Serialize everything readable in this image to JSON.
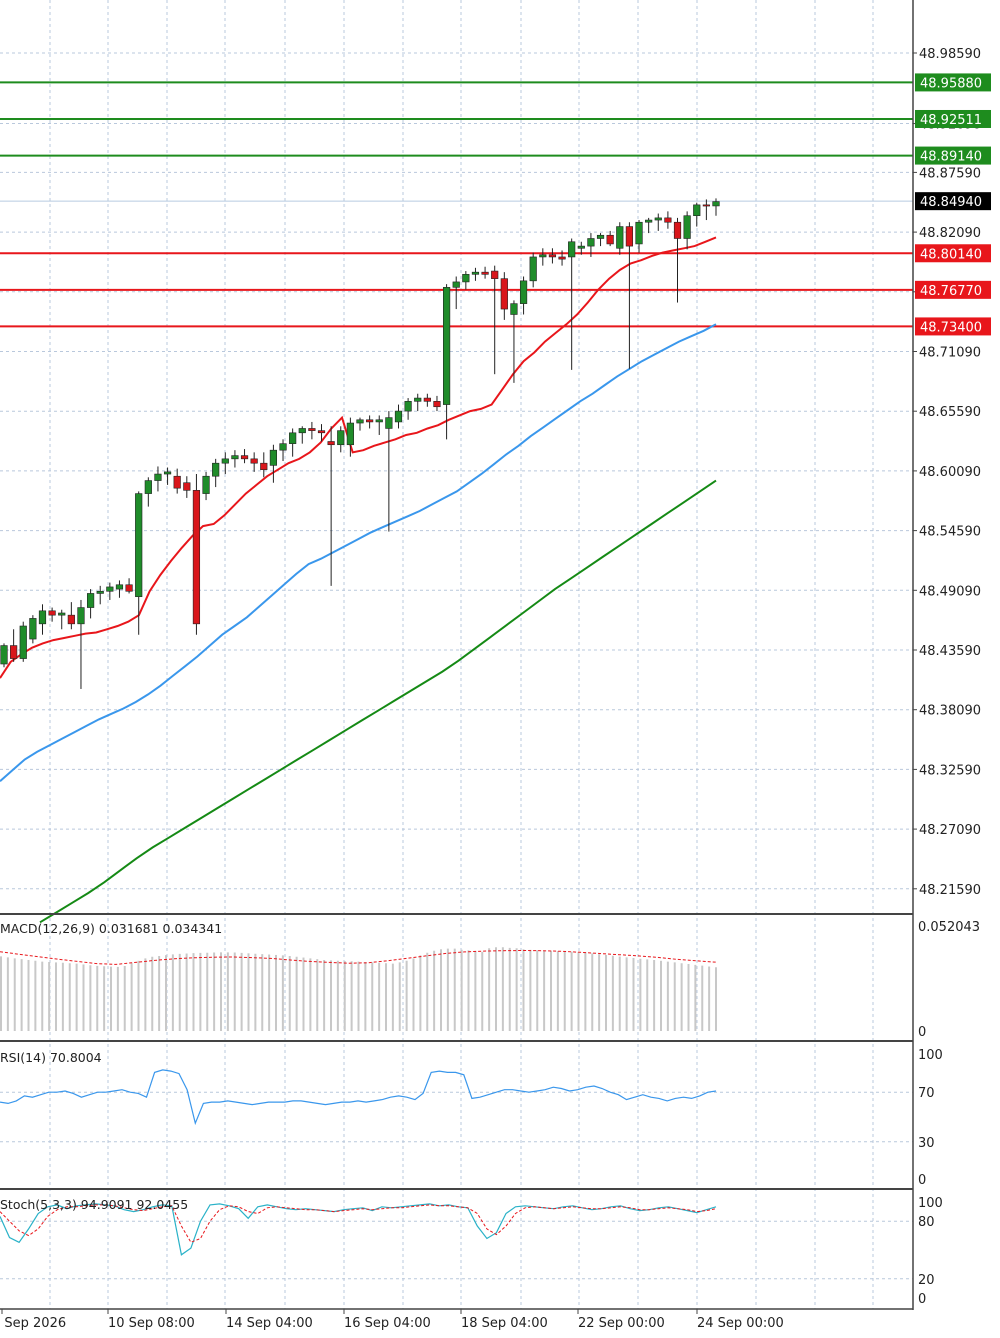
{
  "chart_data": [
    {
      "type": "candlestick",
      "panel": "price",
      "price_scale": {
        "ylim": [
          48.18,
          49.03
        ],
        "ticks": [
          "48.98590",
          "48.92090",
          "48.87590",
          "48.82090",
          "48.76590",
          "48.71090",
          "48.65590",
          "48.60090",
          "48.54590",
          "48.49090",
          "48.43590",
          "48.38090",
          "48.32590",
          "48.27090",
          "48.21590"
        ]
      },
      "time_labels": [
        "8 Sep 2026",
        "10 Sep 08:00",
        "14 Sep 04:00",
        "16 Sep 04:00",
        "18 Sep 04:00",
        "22 Sep 00:00",
        "24 Sep 00:00"
      ],
      "current_price": {
        "label": "48.84940",
        "value": 48.8494,
        "color": "#000000"
      },
      "levels": [
        {
          "label": "48.95880",
          "value": 48.9588,
          "color": "#1e8c1e"
        },
        {
          "label": "48.92511",
          "value": 48.92511,
          "color": "#1e8c1e"
        },
        {
          "label": "48.89140",
          "value": 48.8914,
          "color": "#1e8c1e"
        },
        {
          "label": "48.80140",
          "value": 48.8014,
          "color": "#e8161b"
        },
        {
          "label": "48.76770",
          "value": 48.7677,
          "color": "#e8161b"
        },
        {
          "label": "48.73400",
          "value": 48.734,
          "color": "#e8161b"
        }
      ],
      "candles": [
        [
          48.423,
          48.442,
          48.42,
          48.44
        ],
        [
          48.44,
          48.455,
          48.425,
          48.428
        ],
        [
          48.428,
          48.462,
          48.425,
          48.458
        ],
        [
          48.446,
          48.468,
          48.442,
          48.465
        ],
        [
          48.46,
          48.478,
          48.45,
          48.472
        ],
        [
          48.472,
          48.475,
          48.462,
          48.468
        ],
        [
          48.468,
          48.473,
          48.455,
          48.47
        ],
        [
          48.468,
          48.48,
          48.455,
          48.46
        ],
        [
          48.46,
          48.482,
          48.4,
          48.475
        ],
        [
          48.475,
          48.492,
          48.465,
          48.488
        ],
        [
          48.488,
          48.495,
          48.478,
          48.49
        ],
        [
          48.49,
          48.498,
          48.482,
          48.494
        ],
        [
          48.492,
          48.5,
          48.484,
          48.496
        ],
        [
          48.496,
          48.502,
          48.488,
          48.49
        ],
        [
          48.485,
          48.582,
          48.45,
          48.58
        ],
        [
          48.58,
          48.595,
          48.568,
          48.592
        ],
        [
          48.592,
          48.605,
          48.582,
          48.598
        ],
        [
          48.598,
          48.604,
          48.588,
          48.6
        ],
        [
          48.596,
          48.603,
          48.58,
          48.585
        ],
        [
          48.59,
          48.596,
          48.576,
          48.583
        ],
        [
          48.583,
          48.598,
          48.45,
          48.46
        ],
        [
          48.58,
          48.6,
          48.574,
          48.596
        ],
        [
          48.596,
          48.612,
          48.586,
          48.608
        ],
        [
          48.608,
          48.618,
          48.598,
          48.612
        ],
        [
          48.612,
          48.62,
          48.604,
          48.615
        ],
        [
          48.615,
          48.621,
          48.608,
          48.612
        ],
        [
          48.612,
          48.618,
          48.6,
          48.608
        ],
        [
          48.608,
          48.618,
          48.595,
          48.602
        ],
        [
          48.606,
          48.625,
          48.59,
          48.62
        ],
        [
          48.62,
          48.63,
          48.61,
          48.626
        ],
        [
          48.626,
          48.64,
          48.614,
          48.636
        ],
        [
          48.636,
          48.642,
          48.626,
          48.64
        ],
        [
          48.64,
          48.646,
          48.63,
          48.638
        ],
        [
          48.638,
          48.644,
          48.628,
          48.636
        ],
        [
          48.628,
          48.642,
          48.495,
          48.625
        ],
        [
          48.625,
          48.642,
          48.618,
          48.638
        ],
        [
          48.625,
          48.65,
          48.614,
          48.645
        ],
        [
          48.645,
          48.65,
          48.638,
          48.648
        ],
        [
          48.648,
          48.652,
          48.64,
          48.646
        ],
        [
          48.646,
          48.652,
          48.634,
          48.648
        ],
        [
          48.64,
          48.656,
          48.545,
          48.65
        ],
        [
          48.646,
          48.662,
          48.64,
          48.656
        ],
        [
          48.656,
          48.668,
          48.648,
          48.665
        ],
        [
          48.665,
          48.672,
          48.656,
          48.668
        ],
        [
          48.668,
          48.672,
          48.66,
          48.665
        ],
        [
          48.665,
          48.67,
          48.656,
          48.66
        ],
        [
          48.662,
          48.773,
          48.63,
          48.77
        ],
        [
          48.77,
          48.78,
          48.75,
          48.775
        ],
        [
          48.775,
          48.785,
          48.768,
          48.782
        ],
        [
          48.782,
          48.788,
          48.776,
          48.784
        ],
        [
          48.784,
          48.789,
          48.778,
          48.782
        ],
        [
          48.785,
          48.79,
          48.69,
          48.778
        ],
        [
          48.778,
          48.784,
          48.74,
          48.75
        ],
        [
          48.745,
          48.758,
          48.682,
          48.755
        ],
        [
          48.755,
          48.78,
          48.745,
          48.776
        ],
        [
          48.776,
          48.802,
          48.77,
          48.798
        ],
        [
          48.798,
          48.806,
          48.79,
          48.8
        ],
        [
          48.8,
          48.806,
          48.792,
          48.798
        ],
        [
          48.798,
          48.804,
          48.79,
          48.796
        ],
        [
          48.798,
          48.815,
          48.694,
          48.812
        ],
        [
          48.806,
          48.812,
          48.8,
          48.808
        ],
        [
          48.808,
          48.82,
          48.798,
          48.815
        ],
        [
          48.815,
          48.82,
          48.808,
          48.818
        ],
        [
          48.818,
          48.822,
          48.808,
          48.81
        ],
        [
          48.806,
          48.83,
          48.8,
          48.826
        ],
        [
          48.826,
          48.83,
          48.695,
          48.808
        ],
        [
          48.81,
          48.832,
          48.802,
          48.83
        ],
        [
          48.83,
          48.834,
          48.82,
          48.832
        ],
        [
          48.832,
          48.838,
          48.822,
          48.834
        ],
        [
          48.834,
          48.84,
          48.824,
          48.83
        ],
        [
          48.83,
          48.834,
          48.756,
          48.815
        ],
        [
          48.815,
          48.84,
          48.805,
          48.836
        ],
        [
          48.836,
          48.848,
          48.826,
          48.846
        ],
        [
          48.846,
          48.851,
          48.832,
          48.845
        ],
        [
          48.845,
          48.852,
          48.836,
          48.849
        ]
      ],
      "moving_averages": [
        {
          "color": "#e8161b",
          "values": [
            48.41,
            48.425,
            48.432,
            48.438,
            48.442,
            48.445,
            48.447,
            48.449,
            48.451,
            48.452,
            48.455,
            48.458,
            48.462,
            48.468,
            48.49,
            48.505,
            48.518,
            48.53,
            48.541,
            48.55,
            48.552,
            48.56,
            48.57,
            48.58,
            48.588,
            48.596,
            48.602,
            48.608,
            48.612,
            48.618,
            48.627,
            48.64,
            48.65,
            48.618,
            48.62,
            48.624,
            48.627,
            48.63,
            48.634,
            48.636,
            48.64,
            48.643,
            48.648,
            48.652,
            48.656,
            48.658,
            48.662,
            48.676,
            48.69,
            48.702,
            48.71,
            48.72,
            48.728,
            48.736,
            48.745,
            48.756,
            48.768,
            48.778,
            48.786,
            48.792,
            48.795,
            48.799,
            48.802,
            48.804,
            48.806,
            48.808,
            48.812,
            48.816
          ]
        },
        {
          "color": "#3a97ec",
          "values": [
            48.315,
            48.325,
            48.335,
            48.342,
            48.348,
            48.354,
            48.36,
            48.366,
            48.372,
            48.377,
            48.382,
            48.388,
            48.395,
            48.403,
            48.412,
            48.421,
            48.43,
            48.44,
            48.45,
            48.458,
            48.466,
            48.476,
            48.486,
            48.496,
            48.506,
            48.515,
            48.52,
            48.526,
            48.532,
            48.538,
            48.544,
            48.549,
            48.554,
            48.559,
            48.564,
            48.57,
            48.576,
            48.582,
            48.59,
            48.598,
            48.607,
            48.616,
            48.624,
            48.633,
            48.641,
            48.649,
            48.657,
            48.665,
            48.672,
            48.68,
            48.688,
            48.695,
            48.702,
            48.708,
            48.714,
            48.72,
            48.725,
            48.73,
            48.736
          ]
        },
        {
          "color": "#158a15",
          "values": [
            48.185,
            48.194,
            48.203,
            48.212,
            48.222,
            48.233,
            48.244,
            48.254,
            48.263,
            48.272,
            48.281,
            48.29,
            48.299,
            48.308,
            48.317,
            48.326,
            48.335,
            48.344,
            48.353,
            48.362,
            48.371,
            48.38,
            48.389,
            48.398,
            48.407,
            48.416,
            48.426,
            48.437,
            48.448,
            48.459,
            48.47,
            48.481,
            48.492,
            48.502,
            48.512,
            48.522,
            48.532,
            48.542,
            48.552,
            48.562,
            48.572,
            48.582,
            48.592
          ]
        }
      ]
    },
    {
      "type": "bar",
      "panel": "MACD",
      "label": "MACD(12,26,9) 0.031681 0.034341",
      "scale_labels": [
        "0.052043",
        "0"
      ],
      "ylim": [
        0,
        0.052043
      ],
      "values": [
        0.037,
        0.0365,
        0.036,
        0.0356,
        0.0352,
        0.0348,
        0.0344,
        0.0342,
        0.034,
        0.0338,
        0.0336,
        0.0334,
        0.033,
        0.0326,
        0.0323,
        0.0321,
        0.0319,
        0.0318,
        0.0322,
        0.0336,
        0.0348,
        0.036,
        0.0368,
        0.0372,
        0.0376,
        0.038,
        0.0382,
        0.0384,
        0.0386,
        0.0387,
        0.0388,
        0.0389,
        0.039,
        0.039,
        0.0389,
        0.0387,
        0.0385,
        0.0383,
        0.0381,
        0.0379,
        0.0377,
        0.0375,
        0.0372,
        0.0368,
        0.0364,
        0.036,
        0.0356,
        0.0352,
        0.035,
        0.0348,
        0.0347,
        0.0346,
        0.0344,
        0.0342,
        0.034,
        0.0338,
        0.0336,
        0.0334,
        0.034,
        0.0348,
        0.036,
        0.0375,
        0.0388,
        0.0398,
        0.0405,
        0.0408,
        0.0408,
        0.0403,
        0.04,
        0.0396,
        0.0392,
        0.041,
        0.0415,
        0.0415,
        0.0412,
        0.041,
        0.0405,
        0.0402,
        0.04,
        0.0398,
        0.0398,
        0.0396,
        0.0395,
        0.0393,
        0.0391,
        0.0389,
        0.0385,
        0.0381,
        0.0377,
        0.0373,
        0.0369,
        0.0365,
        0.0362,
        0.0358,
        0.0355,
        0.0352,
        0.0348,
        0.0344,
        0.034,
        0.0336,
        0.0332,
        0.0328,
        0.0324,
        0.032,
        0.0316
      ],
      "signal": [
        0.0393,
        0.038,
        0.0368,
        0.0356,
        0.0345,
        0.0334,
        0.033,
        0.034,
        0.035,
        0.0358,
        0.0363,
        0.0366,
        0.0367,
        0.0364,
        0.036,
        0.0352,
        0.0345,
        0.034,
        0.0336,
        0.0338,
        0.0348,
        0.036,
        0.0372,
        0.0384,
        0.0392,
        0.0396,
        0.0398,
        0.0399,
        0.0398,
        0.0395,
        0.039,
        0.0384,
        0.0378,
        0.0372,
        0.0365,
        0.0355,
        0.0348,
        0.0341
      ]
    },
    {
      "type": "line",
      "panel": "RSI",
      "label": "RSI(14) 70.8004",
      "scale_labels": [
        "100",
        "70",
        "30",
        "0"
      ],
      "ylim": [
        0,
        100
      ],
      "values": [
        62,
        61,
        63,
        67,
        66,
        68,
        70,
        70,
        71,
        69,
        66,
        68,
        70,
        70,
        71,
        72,
        70,
        69,
        66,
        86,
        88,
        87,
        85,
        72,
        45,
        61,
        62,
        62,
        63,
        62,
        61,
        60,
        61,
        62,
        62,
        62,
        63,
        63,
        62,
        61,
        60,
        61,
        62,
        62,
        63,
        62,
        63,
        64,
        66,
        67,
        66,
        64,
        69,
        86,
        87,
        86,
        86,
        84,
        65,
        66,
        68,
        70,
        72,
        72,
        71,
        70,
        71,
        72,
        74,
        73,
        71,
        72,
        74,
        75,
        73,
        70,
        68,
        64,
        66,
        68,
        66,
        65,
        63,
        65,
        66,
        65,
        67,
        70,
        71
      ]
    },
    {
      "type": "line",
      "panel": "Stochastic",
      "label": "Stoch(5,3,3) 94.9091 92.0455",
      "scale_labels": [
        "100",
        "80",
        "20",
        "0"
      ],
      "ylim": [
        0,
        100
      ],
      "k": [
        85,
        63,
        58,
        72,
        88,
        95,
        97,
        93,
        96,
        97,
        98,
        97,
        96,
        92,
        90,
        92,
        95,
        97,
        96,
        45,
        52,
        80,
        97,
        98,
        96,
        93,
        83,
        95,
        97,
        95,
        93,
        92,
        93,
        92,
        91,
        90,
        92,
        93,
        94,
        91,
        95,
        94,
        95,
        96,
        97,
        98,
        96,
        97,
        95,
        94,
        75,
        62,
        68,
        88,
        95,
        96,
        95,
        94,
        93,
        95,
        96,
        94,
        92,
        93,
        95,
        96,
        93,
        91,
        92,
        94,
        95,
        93,
        91,
        89,
        92,
        95
      ],
      "d": [
        90,
        80,
        70,
        65,
        72,
        85,
        92,
        95,
        95,
        96,
        97,
        97,
        96,
        94,
        92,
        91,
        93,
        95,
        96,
        75,
        58,
        62,
        80,
        92,
        96,
        95,
        90,
        88,
        94,
        95,
        94,
        93,
        92,
        92,
        91,
        90,
        91,
        92,
        93,
        92,
        93,
        94,
        94,
        95,
        96,
        97,
        96,
        96,
        95,
        94,
        88,
        72,
        66,
        75,
        88,
        94,
        95,
        94,
        93,
        94,
        95,
        94,
        93,
        93,
        94,
        95,
        94,
        92,
        92,
        93,
        94,
        93,
        92,
        90,
        91,
        93
      ]
    }
  ]
}
